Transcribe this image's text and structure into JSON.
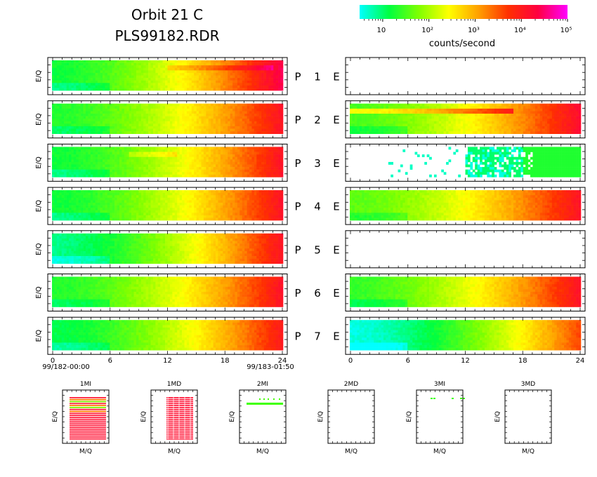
{
  "title_line1": "Orbit 21 C",
  "title_line2": "PLS99182.RDR",
  "colorbar": {
    "colors": [
      "#00ffff",
      "#00ff40",
      "#80ff00",
      "#ffff00",
      "#ffa000",
      "#ff3000",
      "#ff0040",
      "#ff00ff"
    ],
    "tick_labels": [
      "10",
      "10²",
      "10³",
      "10⁴",
      "10⁵"
    ],
    "label": "counts/second"
  },
  "panel_ylabel": "E/Q",
  "p_label": "P",
  "e_label": "E",
  "rows": [
    {
      "index": "1"
    },
    {
      "index": "2"
    },
    {
      "index": "3"
    },
    {
      "index": "4"
    },
    {
      "index": "5"
    },
    {
      "index": "6"
    },
    {
      "index": "7"
    }
  ],
  "time_axis": {
    "ticks": [
      "0",
      "6",
      "12",
      "18",
      "24"
    ],
    "start_label": "99/182-00:00",
    "end_label": "99/183-01:50"
  },
  "mq_panels": [
    {
      "title": "1MI"
    },
    {
      "title": "1MD"
    },
    {
      "title": "2MI"
    },
    {
      "title": "2MD"
    },
    {
      "title": "3MI"
    },
    {
      "title": "3MD"
    }
  ],
  "mq_xlabel": "M/Q",
  "mq_ylabel": "E/Q",
  "chart_data": {
    "type": "heatmap",
    "x_range_hours": [
      0,
      24
    ],
    "color_scale": "log counts/second, 10^0.5 to 10^5",
    "p_panels": [
      {
        "index": 1,
        "log_start": 1.2,
        "log_end": 4.4,
        "band": {
          "start_h": 12,
          "end_h": 23,
          "extra": 0.4
        }
      },
      {
        "index": 2,
        "log_start": 1.3,
        "log_end": 4.1
      },
      {
        "index": 3,
        "log_start": 1.2,
        "log_end": 4.1,
        "band": {
          "start_h": 8,
          "end_h": 13,
          "extra": 0.35
        }
      },
      {
        "index": 4,
        "log_start": 1.2,
        "log_end": 4.1
      },
      {
        "index": 5,
        "log_start": 0.9,
        "log_end": 4.1
      },
      {
        "index": 6,
        "log_start": 1.3,
        "log_end": 4.1
      },
      {
        "index": 7,
        "log_start": 1.1,
        "log_end": 4.0
      }
    ],
    "e_panels": [
      {
        "index": 1,
        "empty": true
      },
      {
        "index": 2,
        "log_start": 1.5,
        "log_end": 4.2,
        "band": {
          "start_h": 0,
          "end_h": 17,
          "extra": 0.9
        }
      },
      {
        "index": 3,
        "sparse": true,
        "sparse_range_h": [
          3,
          19
        ],
        "fill_from_h": 12,
        "fill_log": 1.0
      },
      {
        "index": 4,
        "log_start": 1.6,
        "log_end": 4.1
      },
      {
        "index": 5,
        "empty": true
      },
      {
        "index": 6,
        "log_start": 1.4,
        "log_end": 4.1
      },
      {
        "index": 7,
        "log_start": 0.6,
        "log_end": 3.6
      }
    ],
    "mq_panels": [
      {
        "title": "1MI",
        "pattern": "dense",
        "colors": [
          "#ff2040",
          "#ff8000",
          "#80ff00"
        ]
      },
      {
        "title": "1MD",
        "pattern": "dense",
        "colors": [
          "#ff2040"
        ]
      },
      {
        "title": "2MI",
        "pattern": "single-line",
        "colors": [
          "#40ff00"
        ]
      },
      {
        "title": "2MD",
        "pattern": "empty"
      },
      {
        "title": "3MI",
        "pattern": "dots",
        "colors": [
          "#40ff00"
        ]
      },
      {
        "title": "3MD",
        "pattern": "empty"
      }
    ]
  }
}
